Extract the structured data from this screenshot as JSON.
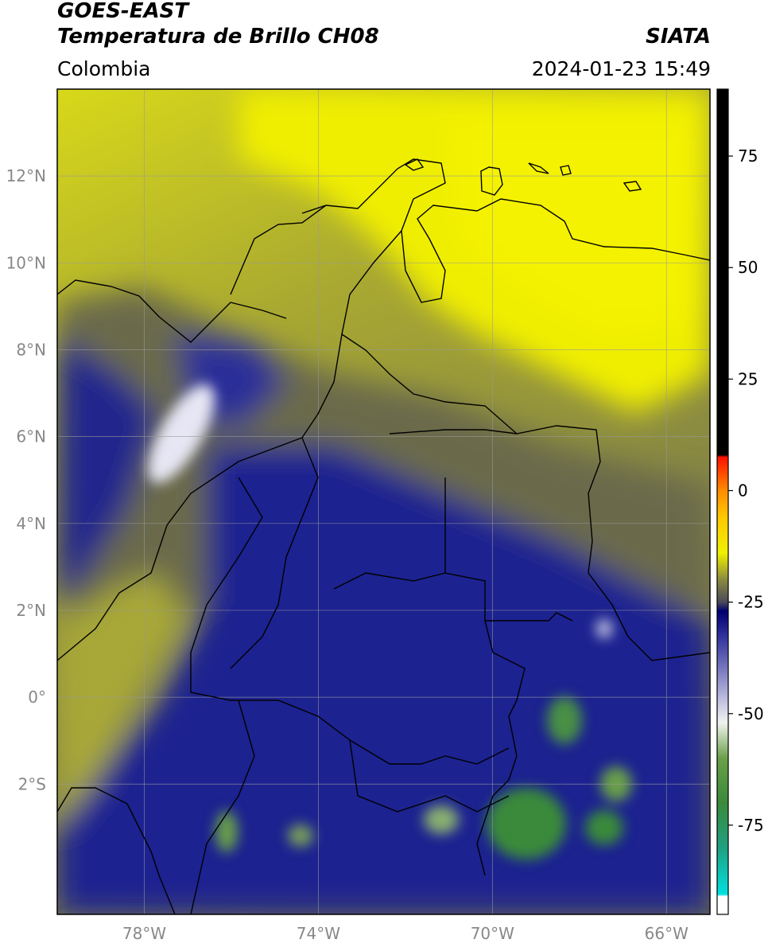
{
  "header": {
    "satellite": "GOES-EAST",
    "product": "Temperatura de Brillo CH08",
    "source": "SIATA",
    "region": "Colombia",
    "datetime": "2024-01-23 15:49"
  },
  "map": {
    "lon_range": [
      -80,
      -65
    ],
    "lat_range": [
      -5,
      14
    ],
    "lat_ticks": [
      {
        "value": 12,
        "label": "12°N"
      },
      {
        "value": 10,
        "label": "10°N"
      },
      {
        "value": 8,
        "label": "8°N"
      },
      {
        "value": 6,
        "label": "6°N"
      },
      {
        "value": 4,
        "label": "4°N"
      },
      {
        "value": 2,
        "label": "2°N"
      },
      {
        "value": 0,
        "label": "0°"
      },
      {
        "value": -2,
        "label": "2°S"
      }
    ],
    "lon_ticks": [
      {
        "value": -78,
        "label": "78°W"
      },
      {
        "value": -74,
        "label": "74°W"
      },
      {
        "value": -70,
        "label": "70°W"
      },
      {
        "value": -66,
        "label": "66°W"
      }
    ],
    "grid": true,
    "colors": {
      "warm": "#f2f000",
      "mid": "#c4c626",
      "olive": "#6a6a48",
      "cold": "#1c2088",
      "very_cold": "#e8e8f4",
      "coldest": "#3a8a3a"
    }
  },
  "colorbar": {
    "range": [
      -95,
      90
    ],
    "ticks": [
      {
        "value": 75,
        "label": "75"
      },
      {
        "value": 50,
        "label": "50"
      },
      {
        "value": 25,
        "label": "25"
      },
      {
        "value": 0,
        "label": "0"
      },
      {
        "value": -25,
        "label": "-25"
      },
      {
        "value": -50,
        "label": "-50"
      },
      {
        "value": -75,
        "label": "-75"
      }
    ],
    "stops": [
      {
        "value": -95,
        "color": "#ffffff"
      },
      {
        "value": -91,
        "color": "#ffffff"
      },
      {
        "value": -90.5,
        "color": "#00e0e0"
      },
      {
        "value": -80,
        "color": "#20a080"
      },
      {
        "value": -70,
        "color": "#3a8a3a"
      },
      {
        "value": -60,
        "color": "#6aa048"
      },
      {
        "value": -52,
        "color": "#f0f4f0"
      },
      {
        "value": -47,
        "color": "#c0c0e0"
      },
      {
        "value": -40,
        "color": "#7878c0"
      },
      {
        "value": -32,
        "color": "#2a2c98"
      },
      {
        "value": -27,
        "color": "#000070"
      },
      {
        "value": -25,
        "color": "#4a4a58"
      },
      {
        "value": -20,
        "color": "#8a8a40"
      },
      {
        "value": -14,
        "color": "#f0f000"
      },
      {
        "value": -6,
        "color": "#ffc800"
      },
      {
        "value": 0,
        "color": "#ff8c00"
      },
      {
        "value": 7.5,
        "color": "#ff1000"
      },
      {
        "value": 8,
        "color": "#000000"
      },
      {
        "value": 90,
        "color": "#000000"
      }
    ]
  }
}
